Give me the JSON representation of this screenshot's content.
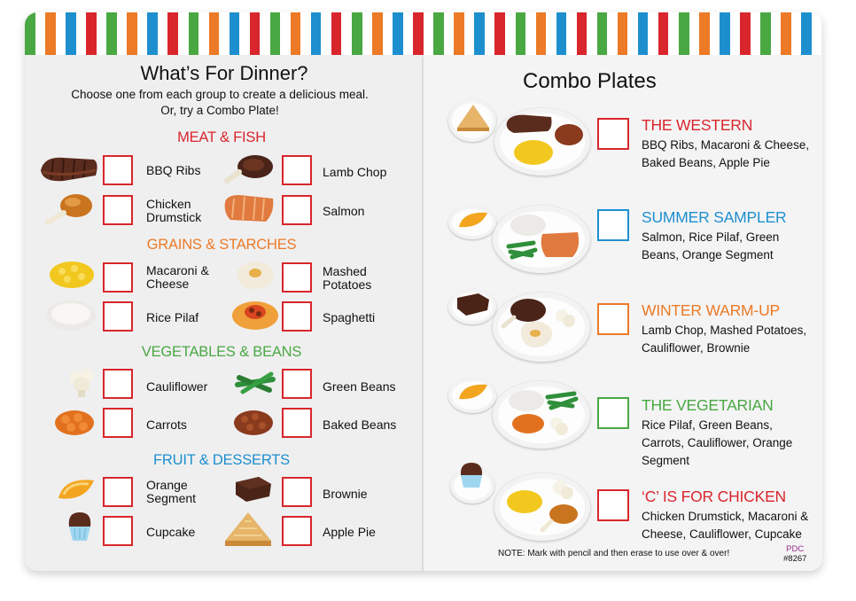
{
  "colors": {
    "red": "#d8262c",
    "orange": "#ec7a26",
    "green": "#4aa843",
    "blue": "#1e8fce",
    "stripe_pattern": [
      "#4aa843",
      "#ffffff",
      "#ec7a26",
      "#ffffff",
      "#1e8fce",
      "#ffffff",
      "#d8262c",
      "#ffffff"
    ]
  },
  "left": {
    "title": "What’s For Dinner?",
    "subtitle_line1": "Choose one from each group to create a delicious meal.",
    "subtitle_line2": "Or, try a Combo Plate!",
    "categories": [
      {
        "name": "MEAT & FISH",
        "items": [
          "BBQ Ribs",
          "Lamb Chop",
          "Chicken Drumstick",
          "Salmon"
        ]
      },
      {
        "name": "GRAINS & STARCHES",
        "items": [
          "Macaroni & Cheese",
          "Mashed Potatoes",
          "Rice Pilaf",
          "Spaghetti"
        ]
      },
      {
        "name": "VEGETABLES & BEANS",
        "items": [
          "Cauliflower",
          "Green Beans",
          "Carrots",
          "Baked Beans"
        ]
      },
      {
        "name": "FRUIT & DESSERTS",
        "items": [
          "Orange Segment",
          "Brownie",
          "Cupcake",
          "Apple Pie"
        ]
      }
    ],
    "label_lines": {
      "chicken": [
        "Chicken",
        "Drumstick"
      ],
      "mac": [
        "Macaroni &",
        "Cheese"
      ],
      "mashed": [
        "Mashed",
        "Potatoes"
      ],
      "orange": [
        "Orange",
        "Segment"
      ]
    }
  },
  "right": {
    "title": "Combo Plates",
    "combos": [
      {
        "name": "THE WESTERN",
        "line1": "BBQ Ribs, Macaroni & Cheese,",
        "line2": "Baked Beans, Apple Pie",
        "line3": ""
      },
      {
        "name": "SUMMER SAMPLER",
        "line1": "Salmon, Rice Pilaf, Green",
        "line2": "Beans, Orange Segment",
        "line3": ""
      },
      {
        "name": "WINTER WARM-UP",
        "line1": "Lamb Chop, Mashed Potatoes,",
        "line2": "Cauliflower, Brownie",
        "line3": ""
      },
      {
        "name": "THE VEGETARIAN",
        "line1": "Rice Pilaf, Green Beans,",
        "line2": "Carrots, Cauliflower, Orange",
        "line3": "Segment"
      },
      {
        "name": "‘C’ IS FOR CHICKEN",
        "line1": "Chicken Drumstick, Macaroni &",
        "line2": "Cheese, Cauliflower, Cupcake",
        "line3": ""
      }
    ],
    "note": "NOTE: Mark with pencil and then erase to use over & over!",
    "code_line1": "PDC",
    "code_line2": "#8267"
  },
  "icons": [
    "bbq-ribs-icon",
    "lamb-chop-icon",
    "chicken-drumstick-icon",
    "salmon-icon",
    "macaroni-icon",
    "mashed-potatoes-icon",
    "rice-pilaf-icon",
    "spaghetti-icon",
    "cauliflower-icon",
    "green-beans-icon",
    "carrots-icon",
    "baked-beans-icon",
    "orange-segment-icon",
    "brownie-icon",
    "cupcake-icon",
    "apple-pie-icon"
  ]
}
